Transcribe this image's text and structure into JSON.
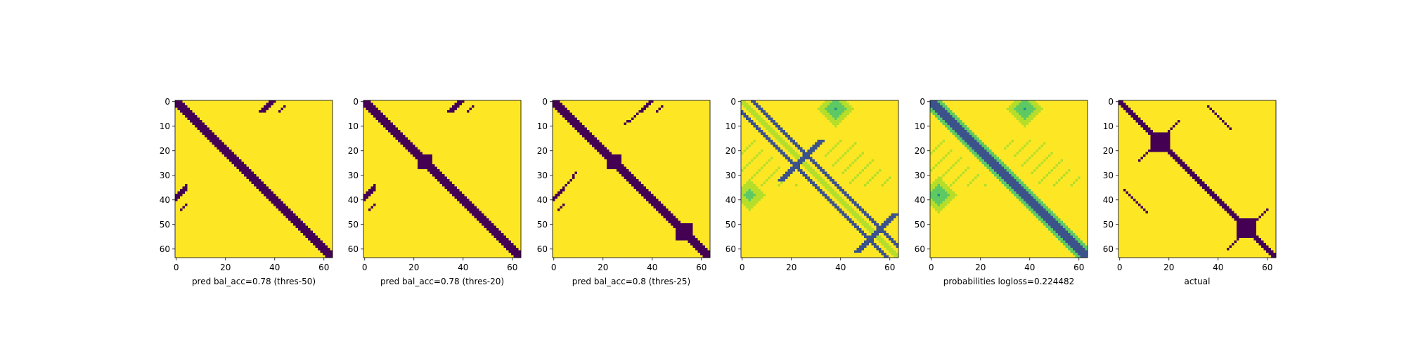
{
  "chart_data": [
    {
      "type": "heatmap",
      "xlabel": "pred bal_acc=0.78 (thres-50)",
      "xticks": [
        0,
        20,
        40,
        60
      ],
      "yticks": [
        0,
        10,
        20,
        30,
        40,
        50,
        60
      ],
      "xlim": [
        0,
        63
      ],
      "ylim": [
        0,
        63
      ],
      "grid": false,
      "values": "binary contact map (purple = 0, yellow = 1): thick diagonal band 0-63; off-diagonal blob near rows 0-4 / cols 34-46 and symmetric cols 0-6 / rows 36-47"
    },
    {
      "type": "heatmap",
      "xlabel": "pred bal_acc=0.78 (thres-20)",
      "xticks": [
        0,
        20,
        40,
        60
      ],
      "yticks": [
        0,
        10,
        20,
        30,
        40,
        50,
        60
      ],
      "xlim": [
        0,
        63
      ],
      "ylim": [
        0,
        63
      ],
      "grid": false,
      "values": "binary contact map: thick diagonal band with small bulge near (25,25); off-diagonal blobs rows 0-4 / cols 35-40 and rows 35-45 / cols 0-5"
    },
    {
      "type": "heatmap",
      "xlabel": "pred bal_acc=0.8 (thres-25)",
      "xticks": [
        0,
        20,
        40,
        60
      ],
      "yticks": [
        0,
        10,
        20,
        30,
        40,
        50,
        60
      ],
      "xlim": [
        0,
        63
      ],
      "ylim": [
        0,
        63
      ],
      "grid": false,
      "values": "binary contact map: thick diagonal band with bulges near (25,25) and (55,55); off-diagonal blobs rows 0-7 / cols 34-41 and rows 33-46 / cols 0-10"
    },
    {
      "type": "heatmap",
      "xlabel": "",
      "xticks": [
        0,
        20,
        40,
        60
      ],
      "yticks": [
        0,
        10,
        20,
        30,
        40,
        50,
        60
      ],
      "xlim": [
        0,
        63
      ],
      "ylim": [
        0,
        63
      ],
      "grid": false,
      "values": "continuous probability map (viridis): crossing diagonal stripes at ±4 offset, strong spots near (24,24) and (53,53), diffuse green patches off-diagonal"
    },
    {
      "type": "heatmap",
      "xlabel": "probabilities logloss=0.224482",
      "xticks": [
        0,
        20,
        40,
        60
      ],
      "yticks": [
        0,
        10,
        20,
        30,
        40,
        50,
        60
      ],
      "xlim": [
        0,
        63
      ],
      "ylim": [
        0,
        63
      ],
      "grid": false,
      "values": "continuous probability map (viridis): dark diagonal band, green/teal halos off-diagonal near rows 0-10 / cols 35-45 and rows 35-45 / cols 0-10"
    },
    {
      "type": "heatmap",
      "xlabel": "actual",
      "xticks": [
        0,
        20,
        40,
        60
      ],
      "yticks": [
        0,
        10,
        20,
        30,
        40,
        50,
        60
      ],
      "xlim": [
        0,
        63
      ],
      "ylim": [
        0,
        63
      ],
      "grid": false,
      "values": "binary contact map: diagonal band plus anti-diagonal structures crossing near (16,16) and (52,52), scattered off-diagonal contacts"
    }
  ],
  "colors": {
    "purple": "#440154",
    "yellow": "#fde725",
    "teal": "#21918c",
    "blue": "#3b528b",
    "green": "#5ec962",
    "lightgreen": "#b5de2b"
  }
}
